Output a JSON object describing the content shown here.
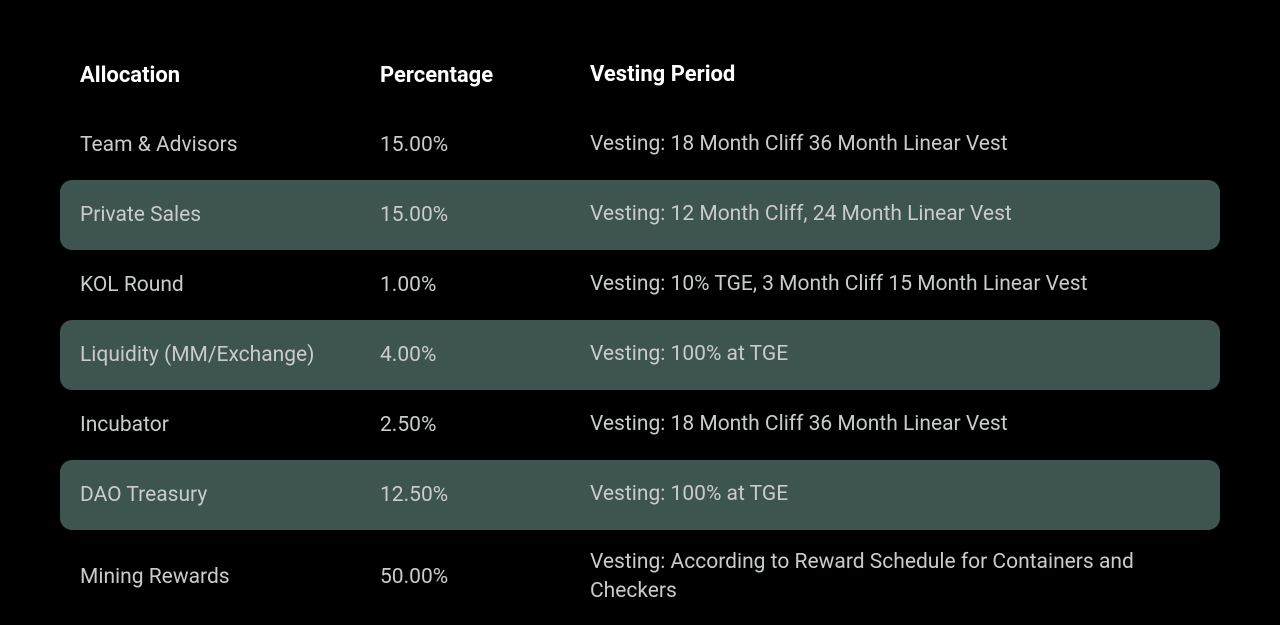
{
  "table": {
    "headers": {
      "allocation": "Allocation",
      "percentage": "Percentage",
      "vesting": "Vesting Period"
    },
    "rows": [
      {
        "allocation": "Team & Advisors",
        "percentage": "15.00%",
        "vesting": "Vesting: 18 Month Cliff 36 Month Linear Vest"
      },
      {
        "allocation": "Private Sales",
        "percentage": "15.00%",
        "vesting": " Vesting: 12 Month Cliff, 24 Month Linear Vest"
      },
      {
        "allocation": "KOL Round",
        "percentage": "1.00%",
        "vesting": "Vesting: 10% TGE, 3 Month Cliff 15 Month Linear Vest"
      },
      {
        "allocation": "Liquidity (MM/Exchange)",
        "percentage": "4.00%",
        "vesting": "Vesting: 100% at TGE"
      },
      {
        "allocation": "Incubator",
        "percentage": "2.50%",
        "vesting": " Vesting: 18 Month Cliff 36 Month Linear Vest"
      },
      {
        "allocation": "DAO Treasury",
        "percentage": "12.50%",
        "vesting": "Vesting: 100% at TGE"
      },
      {
        "allocation": "Mining Rewards",
        "percentage": "50.00%",
        "vesting": "Vesting: According to Reward Schedule for Containers and Checkers"
      }
    ],
    "styling": {
      "background_color": "#000000",
      "text_color": "#c8cccb",
      "header_color": "#ffffff",
      "stripe_color": "#3d5450",
      "font_size_header": 22,
      "font_size_body": 21,
      "col_widths": {
        "allocation": 300,
        "percentage": 210
      }
    }
  }
}
